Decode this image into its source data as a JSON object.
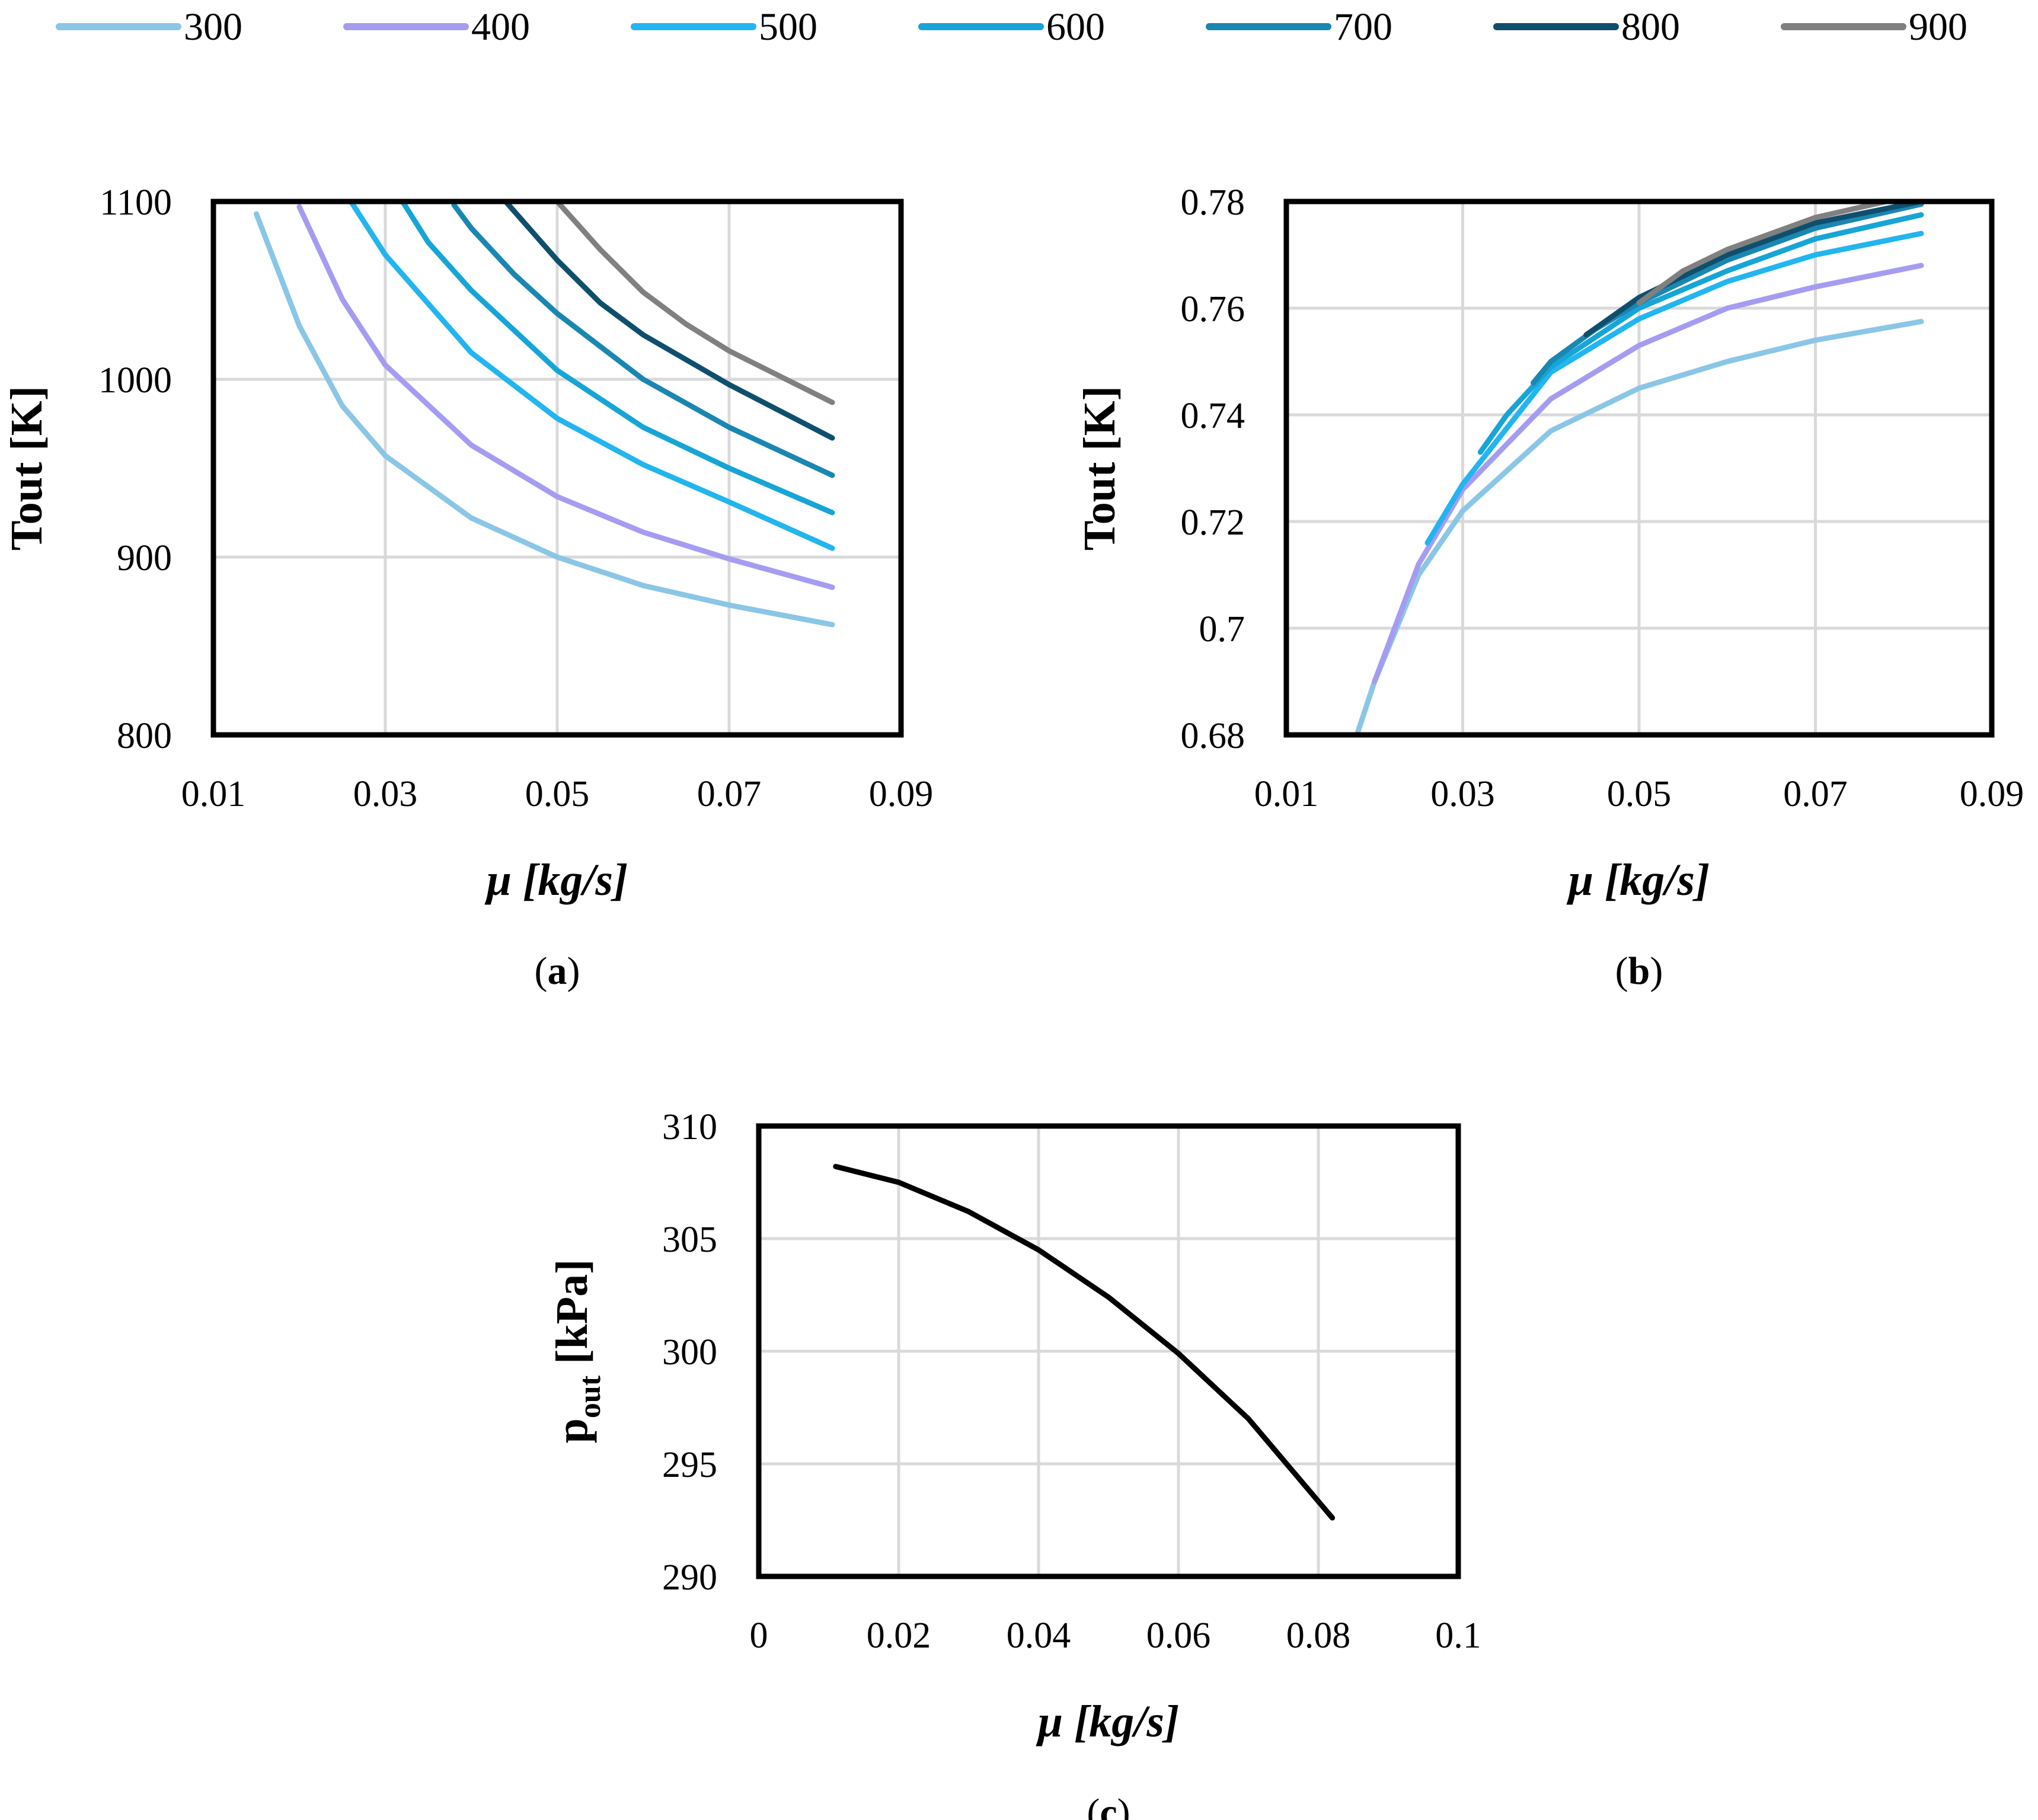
{
  "legend": {
    "entries": [
      {
        "label": "300",
        "color": "#8ac6e6"
      },
      {
        "label": "400",
        "color": "#a59cf2"
      },
      {
        "label": "500",
        "color": "#22b5ef"
      },
      {
        "label": "600",
        "color": "#16a5d6"
      },
      {
        "label": "700",
        "color": "#1a87b2"
      },
      {
        "label": "800",
        "color": "#0f4f6e"
      },
      {
        "label": "900",
        "color": "#808080"
      }
    ]
  },
  "chart_data": [
    {
      "type": "line",
      "panel": "(a)",
      "panel_letter": "a",
      "title": "",
      "xlabel": "μ [kg/s]",
      "ylabel": "Tout [K]",
      "xlim": [
        0.01,
        0.09
      ],
      "ylim": [
        800,
        1100
      ],
      "xticks": [
        "0.01",
        "0.03",
        "0.05",
        "0.07",
        "0.09"
      ],
      "yticks": [
        "800",
        "900",
        "1000",
        "1100"
      ],
      "grid": true,
      "series": [
        {
          "name": "300",
          "x": [
            0.015,
            0.02,
            0.025,
            0.03,
            0.04,
            0.05,
            0.06,
            0.07,
            0.082
          ],
          "y": [
            1093,
            1030,
            985,
            957,
            922,
            900,
            884,
            873,
            862
          ]
        },
        {
          "name": "400",
          "x": [
            0.02,
            0.025,
            0.03,
            0.04,
            0.05,
            0.06,
            0.07,
            0.082
          ],
          "y": [
            1097,
            1045,
            1008,
            963,
            934,
            914,
            899,
            883
          ]
        },
        {
          "name": "500",
          "x": [
            0.026,
            0.03,
            0.04,
            0.05,
            0.06,
            0.07,
            0.082
          ],
          "y": [
            1100,
            1070,
            1015,
            978,
            952,
            931,
            905
          ]
        },
        {
          "name": "600",
          "x": [
            0.032,
            0.035,
            0.04,
            0.05,
            0.06,
            0.07,
            0.082
          ],
          "y": [
            1100,
            1077,
            1050,
            1005,
            973,
            950,
            925
          ]
        },
        {
          "name": "700",
          "x": [
            0.038,
            0.04,
            0.045,
            0.05,
            0.06,
            0.07,
            0.082
          ],
          "y": [
            1098,
            1085,
            1059,
            1037,
            1000,
            973,
            946
          ]
        },
        {
          "name": "800",
          "x": [
            0.044,
            0.05,
            0.055,
            0.06,
            0.07,
            0.082
          ],
          "y": [
            1100,
            1067,
            1043,
            1025,
            997,
            967
          ]
        },
        {
          "name": "900",
          "x": [
            0.05,
            0.055,
            0.06,
            0.065,
            0.07,
            0.082
          ],
          "y": [
            1100,
            1073,
            1049,
            1031,
            1016,
            987
          ]
        }
      ]
    },
    {
      "type": "line",
      "panel": "(b)",
      "panel_letter": "b",
      "title": "",
      "xlabel": "μ [kg/s]",
      "ylabel": "Tout [K]",
      "xlim": [
        0.01,
        0.09
      ],
      "ylim": [
        0.68,
        0.78
      ],
      "xticks": [
        "0.01",
        "0.03",
        "0.05",
        "0.07",
        "0.09"
      ],
      "yticks": [
        "0.68",
        "0.7",
        "0.72",
        "0.74",
        "0.76",
        "0.78"
      ],
      "grid": true,
      "series": [
        {
          "name": "300",
          "x": [
            0.018,
            0.02,
            0.025,
            0.03,
            0.04,
            0.05,
            0.06,
            0.07,
            0.082
          ],
          "y": [
            0.68,
            0.69,
            0.71,
            0.722,
            0.737,
            0.745,
            0.75,
            0.754,
            0.7575
          ]
        },
        {
          "name": "400",
          "x": [
            0.02,
            0.025,
            0.03,
            0.04,
            0.05,
            0.06,
            0.07,
            0.082
          ],
          "y": [
            0.69,
            0.712,
            0.726,
            0.743,
            0.753,
            0.76,
            0.764,
            0.768
          ]
        },
        {
          "name": "500",
          "x": [
            0.026,
            0.03,
            0.04,
            0.05,
            0.06,
            0.07,
            0.082
          ],
          "y": [
            0.716,
            0.727,
            0.748,
            0.758,
            0.765,
            0.77,
            0.774
          ]
        },
        {
          "name": "600",
          "x": [
            0.032,
            0.035,
            0.04,
            0.05,
            0.06,
            0.07,
            0.082
          ],
          "y": [
            0.733,
            0.74,
            0.749,
            0.76,
            0.767,
            0.773,
            0.7775
          ]
        },
        {
          "name": "700",
          "x": [
            0.038,
            0.04,
            0.045,
            0.05,
            0.06,
            0.07,
            0.082
          ],
          "y": [
            0.746,
            0.75,
            0.756,
            0.761,
            0.769,
            0.775,
            0.7795
          ]
        },
        {
          "name": "800",
          "x": [
            0.044,
            0.05,
            0.055,
            0.06,
            0.07,
            0.082
          ],
          "y": [
            0.755,
            0.762,
            0.766,
            0.77,
            0.776,
            0.78
          ]
        },
        {
          "name": "900",
          "x": [
            0.05,
            0.055,
            0.06,
            0.065,
            0.07,
            0.078
          ],
          "y": [
            0.761,
            0.767,
            0.771,
            0.774,
            0.777,
            0.78
          ]
        }
      ]
    },
    {
      "type": "line",
      "panel": "(c)",
      "panel_letter": "c",
      "title": "",
      "xlabel": "μ [kg/s]",
      "ylabel_main": "p",
      "ylabel_sub": "out",
      "ylabel_unit": " [kPa]",
      "xlim": [
        0,
        0.1
      ],
      "ylim": [
        290,
        310
      ],
      "xticks": [
        "0",
        "0.02",
        "0.04",
        "0.06",
        "0.08",
        "0.1"
      ],
      "yticks": [
        "290",
        "295",
        "300",
        "305",
        "310"
      ],
      "grid": true,
      "series": [
        {
          "name": "pout",
          "color": "#000000",
          "x": [
            0.011,
            0.02,
            0.03,
            0.04,
            0.05,
            0.06,
            0.07,
            0.082
          ],
          "y": [
            308.2,
            307.5,
            306.2,
            304.5,
            302.4,
            299.9,
            297.0,
            292.6
          ]
        }
      ]
    }
  ]
}
